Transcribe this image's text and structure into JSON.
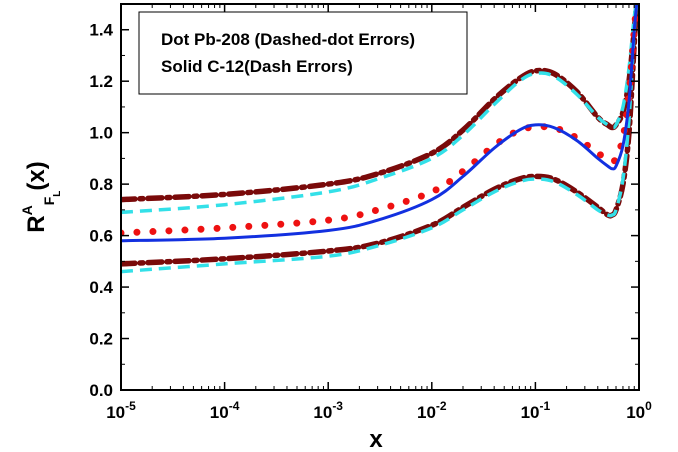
{
  "chart_data": {
    "type": "line",
    "xscale": "log",
    "xlim": [
      1e-05,
      1
    ],
    "ylim": [
      0,
      1.5
    ],
    "xlabel": "x",
    "ylabel": {
      "base": "R",
      "sup": "A",
      "sub": "F",
      "subsub": "L",
      "suffix": "(x)"
    },
    "x_ticks": [
      {
        "base": "10",
        "exp": "-5",
        "value": 1e-05
      },
      {
        "base": "10",
        "exp": "-4",
        "value": 0.0001
      },
      {
        "base": "10",
        "exp": "-3",
        "value": 0.001
      },
      {
        "base": "10",
        "exp": "-2",
        "value": 0.01
      },
      {
        "base": "10",
        "exp": "-1",
        "value": 0.1
      },
      {
        "base": "10",
        "exp": "0",
        "value": 1
      }
    ],
    "y_ticks": [
      "0.0",
      "0.2",
      "0.4",
      "0.6",
      "0.8",
      "1.0",
      "1.2",
      "1.4"
    ],
    "y_tick_values": [
      0,
      0.2,
      0.4,
      0.6,
      0.8,
      1.0,
      1.2,
      1.4
    ],
    "legend": {
      "position": "top-left",
      "entries": [
        "Dot Pb-208 (Dashed-dot Errors)",
        "Solid C-12(Dash Errors)"
      ]
    },
    "series": [
      {
        "style": "dashdot",
        "color": "#7a0a0a",
        "x": [
          1e-05,
          0.0001,
          0.001,
          0.003,
          0.01,
          0.02,
          0.04,
          0.07,
          0.1,
          0.15,
          0.25,
          0.4,
          0.5,
          0.55,
          0.6,
          0.7,
          0.8,
          0.9,
          0.95
        ],
        "y": [
          0.74,
          0.76,
          0.8,
          0.84,
          0.92,
          1.01,
          1.13,
          1.21,
          1.24,
          1.23,
          1.16,
          1.06,
          1.03,
          1.02,
          1.03,
          1.08,
          1.2,
          1.4,
          1.5
        ]
      },
      {
        "style": "dashdot",
        "color": "#7a0a0a",
        "x": [
          1e-05,
          0.0001,
          0.001,
          0.003,
          0.01,
          0.02,
          0.04,
          0.07,
          0.1,
          0.15,
          0.25,
          0.4,
          0.5,
          0.55,
          0.6,
          0.7,
          0.8,
          0.9,
          0.95
        ],
        "y": [
          0.49,
          0.51,
          0.54,
          0.57,
          0.64,
          0.71,
          0.78,
          0.82,
          0.83,
          0.82,
          0.77,
          0.71,
          0.68,
          0.68,
          0.7,
          0.8,
          1.0,
          1.35,
          1.5
        ]
      },
      {
        "style": "dash",
        "color": "#33e0e8",
        "x": [
          1e-05,
          0.0001,
          0.001,
          0.003,
          0.01,
          0.02,
          0.04,
          0.07,
          0.1,
          0.15,
          0.25,
          0.4,
          0.5,
          0.55,
          0.6,
          0.7,
          0.8,
          0.9,
          0.95
        ],
        "y": [
          0.69,
          0.72,
          0.77,
          0.82,
          0.9,
          0.99,
          1.11,
          1.2,
          1.23,
          1.22,
          1.15,
          1.06,
          1.03,
          1.02,
          1.03,
          1.1,
          1.25,
          1.45,
          1.5
        ]
      },
      {
        "style": "dash",
        "color": "#33e0e8",
        "x": [
          1e-05,
          0.0001,
          0.001,
          0.003,
          0.01,
          0.02,
          0.04,
          0.07,
          0.1,
          0.15,
          0.25,
          0.4,
          0.5,
          0.55,
          0.6,
          0.7,
          0.8,
          0.9,
          0.95
        ],
        "y": [
          0.46,
          0.49,
          0.52,
          0.56,
          0.63,
          0.7,
          0.77,
          0.81,
          0.82,
          0.81,
          0.76,
          0.7,
          0.68,
          0.68,
          0.7,
          0.82,
          1.05,
          1.4,
          1.5
        ]
      },
      {
        "style": "dot",
        "color": "#ee1111",
        "x": [
          1e-05,
          0.0001,
          0.001,
          0.003,
          0.01,
          0.02,
          0.04,
          0.07,
          0.1,
          0.15,
          0.25,
          0.4,
          0.5,
          0.55,
          0.6,
          0.7,
          0.8,
          0.9,
          0.95
        ],
        "y": [
          0.61,
          0.63,
          0.66,
          0.7,
          0.77,
          0.85,
          0.95,
          1.01,
          1.02,
          1.02,
          0.98,
          0.92,
          0.9,
          0.89,
          0.9,
          0.98,
          1.15,
          1.4,
          1.5
        ]
      },
      {
        "style": "solid",
        "color": "#1230e0",
        "x": [
          1e-05,
          0.0001,
          0.001,
          0.003,
          0.01,
          0.02,
          0.04,
          0.07,
          0.1,
          0.15,
          0.25,
          0.4,
          0.5,
          0.55,
          0.6,
          0.7,
          0.8,
          0.9,
          0.95
        ],
        "y": [
          0.58,
          0.59,
          0.62,
          0.66,
          0.74,
          0.83,
          0.94,
          1.01,
          1.03,
          1.02,
          0.97,
          0.9,
          0.87,
          0.86,
          0.87,
          0.95,
          1.12,
          1.4,
          1.5
        ]
      }
    ]
  }
}
